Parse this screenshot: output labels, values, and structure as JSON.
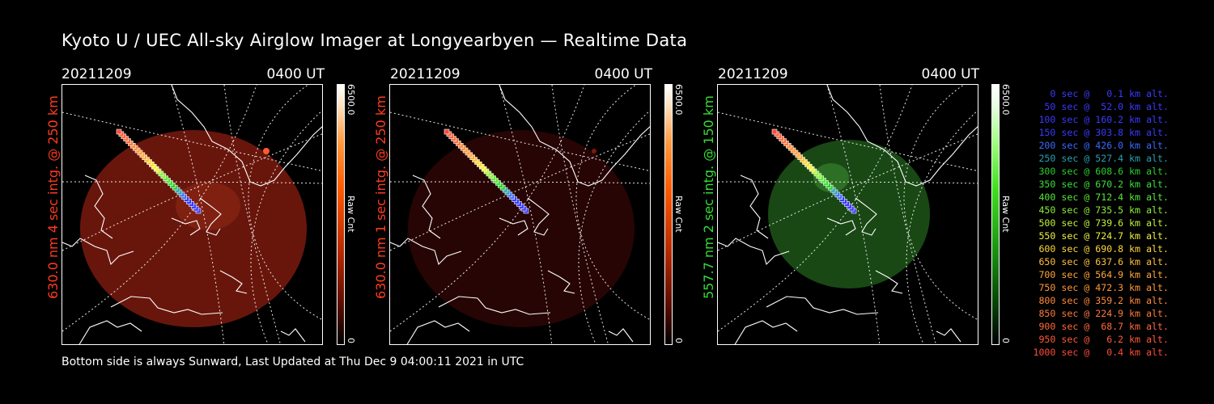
{
  "title": "Kyoto U / UEC All-sky Airglow Imager at Longyearbyen — Realtime Data",
  "footer": "Bottom side is always Sunward, Last Updated at Thu Dec  9 04:00:11 2021 in UTC",
  "colors": {
    "background": "#000000",
    "red_label": "#ff3b1f",
    "green_label": "#33dd33",
    "red_emission": "#8a1e0e",
    "green_emission": "#1f5a1a"
  },
  "panels": [
    {
      "date": "20211209",
      "time": "0400 UT",
      "side_label": "630.0 nm 4 sec intg. @ 250 km",
      "colorbar_max": "6500.0",
      "colorbar_min": "0",
      "colorbar_unit": "Raw Cnt",
      "colorbar_scheme": "red"
    },
    {
      "date": "20211209",
      "time": "0400 UT",
      "side_label": "630.0 nm 1 sec intg. @ 250 km",
      "colorbar_max": "6500.0",
      "colorbar_min": "0",
      "colorbar_unit": "Raw Cnt",
      "colorbar_scheme": "red"
    },
    {
      "date": "20211209",
      "time": "0400 UT",
      "side_label": "557.7 nm 2 sec intg. @ 150 km",
      "colorbar_max": "6500.0",
      "colorbar_min": "0",
      "colorbar_unit": "Raw Cnt",
      "colorbar_scheme": "green"
    }
  ],
  "legend": [
    {
      "text": "   0 sec @   0.1 km alt.",
      "color": "#3a3aff"
    },
    {
      "text": "  50 sec @  52.0 km alt.",
      "color": "#3a3aff"
    },
    {
      "text": " 100 sec @ 160.2 km alt.",
      "color": "#3a3aff"
    },
    {
      "text": " 150 sec @ 303.8 km alt.",
      "color": "#3a3aff"
    },
    {
      "text": " 200 sec @ 426.0 km alt.",
      "color": "#3a6aff"
    },
    {
      "text": " 250 sec @ 527.4 km alt.",
      "color": "#2aa0b0"
    },
    {
      "text": " 300 sec @ 608.6 km alt.",
      "color": "#2ad02a"
    },
    {
      "text": " 350 sec @ 670.2 km alt.",
      "color": "#3ae03a"
    },
    {
      "text": " 400 sec @ 712.4 km alt.",
      "color": "#5ae83a"
    },
    {
      "text": " 450 sec @ 735.5 km alt.",
      "color": "#8aee3a"
    },
    {
      "text": " 500 sec @ 739.6 km alt.",
      "color": "#c0f03a"
    },
    {
      "text": " 550 sec @ 724.7 km alt.",
      "color": "#f0f03a"
    },
    {
      "text": " 600 sec @ 690.8 km alt.",
      "color": "#ffd83a"
    },
    {
      "text": " 650 sec @ 637.6 km alt.",
      "color": "#ffc03a"
    },
    {
      "text": " 700 sec @ 564.9 km alt.",
      "color": "#ffa83a"
    },
    {
      "text": " 750 sec @ 472.3 km alt.",
      "color": "#ff983a"
    },
    {
      "text": " 800 sec @ 359.2 km alt.",
      "color": "#ff8a3a"
    },
    {
      "text": " 850 sec @ 224.9 km alt.",
      "color": "#ff7a3a"
    },
    {
      "text": " 900 sec @  68.7 km alt.",
      "color": "#ff6a3a"
    },
    {
      "text": " 950 sec @   6.2 km alt.",
      "color": "#ff5a3a"
    },
    {
      "text": "1000 sec @   0.4 km alt.",
      "color": "#ff4a3a"
    }
  ]
}
